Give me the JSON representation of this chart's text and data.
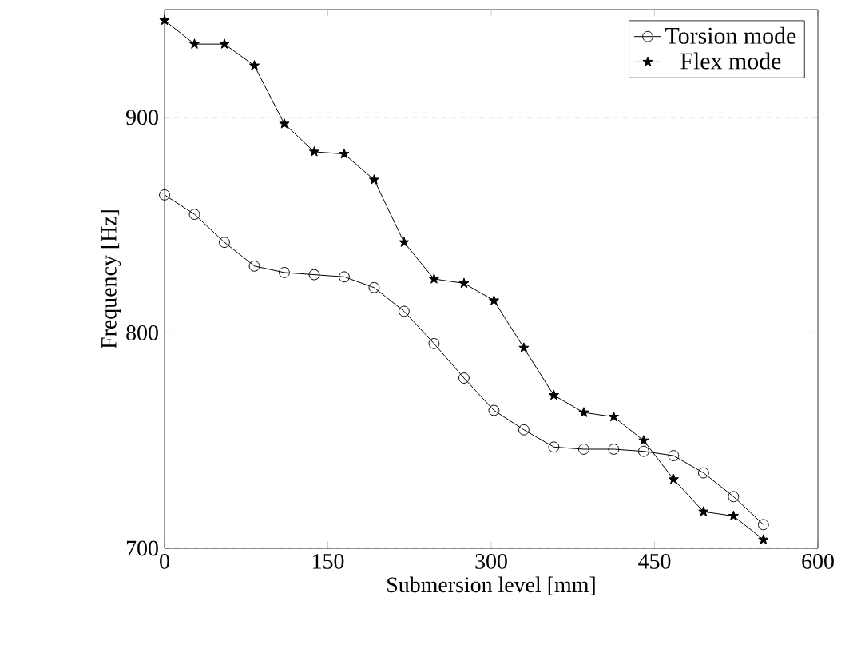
{
  "chart_data": {
    "type": "line",
    "xlabel": "Submersion level [mm]",
    "ylabel": "Frequency [Hz]",
    "x": [
      0,
      27.5,
      55,
      82.5,
      110,
      137.5,
      165,
      192.5,
      220,
      247.5,
      275,
      302.5,
      330,
      357.5,
      385,
      412.5,
      440,
      467.5,
      495,
      522.5,
      550
    ],
    "series": [
      {
        "name": "Torsion mode",
        "color": "#000000",
        "marker": "circle",
        "values": [
          864,
          855,
          842,
          831,
          828,
          827,
          826,
          821,
          810,
          795,
          779,
          764,
          755,
          747,
          746,
          746,
          745,
          743,
          735,
          724,
          711
        ]
      },
      {
        "name": "Flex mode",
        "color": "#000000",
        "marker": "star",
        "values": [
          945,
          934,
          934,
          924,
          897,
          884,
          883,
          871,
          842,
          825,
          823,
          815,
          793,
          771,
          763,
          761,
          750,
          732,
          717,
          715,
          704
        ]
      }
    ],
    "xlim": [
      0,
      600
    ],
    "xticks": [
      0,
      150,
      300,
      450,
      600
    ],
    "ylim": [
      700,
      950
    ],
    "yticks": [
      700,
      800,
      900
    ],
    "grid": "y",
    "legend": "top right",
    "line_style": "solid"
  }
}
